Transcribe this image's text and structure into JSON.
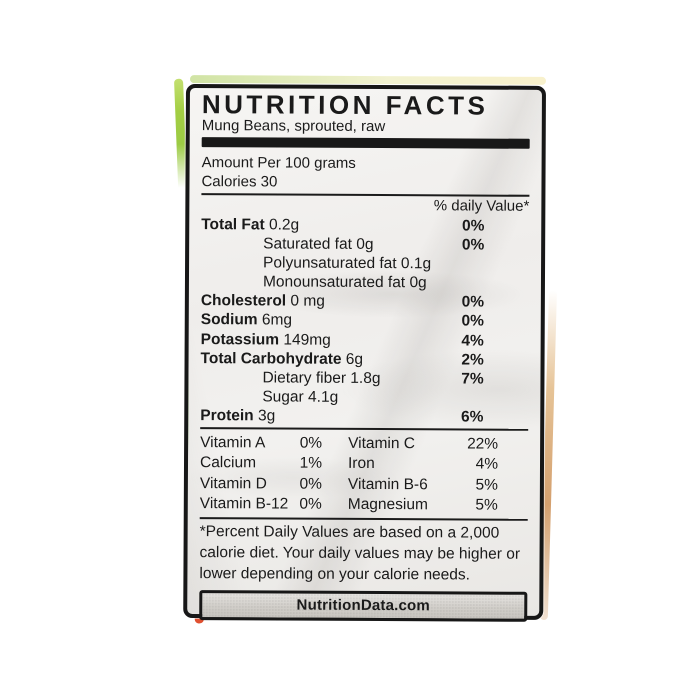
{
  "label": {
    "title": "NUTRITION FACTS",
    "subtitle": "Mung Beans, sprouted, raw",
    "amount_per": "Amount Per 100 grams",
    "calories_line": "Calories 30",
    "daily_value_header": "% daily Value*",
    "nutrients": [
      {
        "name": "Total Fat",
        "value": "0.2g",
        "pct": "0%",
        "bold": true
      },
      {
        "name": "Saturated fat",
        "value": "0g",
        "pct": "0%",
        "indent": true
      },
      {
        "name": "Polyunsaturated fat",
        "value": "0.1g",
        "pct": "",
        "indent": true
      },
      {
        "name": "Monounsaturated fat",
        "value": "0g",
        "pct": "",
        "indent": true
      },
      {
        "name": "Cholesterol",
        "value": "0 mg",
        "pct": "0%",
        "bold": true
      },
      {
        "name": "Sodium",
        "value": "6mg",
        "pct": "0%",
        "bold": true
      },
      {
        "name": "Potassium",
        "value": "149mg",
        "pct": "4%",
        "bold": true
      },
      {
        "name": "Total Carbohydrate",
        "value": "6g",
        "pct": "2%",
        "bold": true
      },
      {
        "name": "Dietary fiber",
        "value": "1.8g",
        "pct": "7%",
        "indent": true
      },
      {
        "name": "Sugar",
        "value": "4.1g",
        "pct": "",
        "indent": true
      },
      {
        "name": "Protein",
        "value": "3g",
        "pct": "6%",
        "bold": true
      }
    ],
    "vitamins": [
      {
        "left_name": "Vitamin A",
        "left_pct": "0%",
        "right_name": "Vitamin C",
        "right_pct": "22%"
      },
      {
        "left_name": "Calcium",
        "left_pct": "1%",
        "right_name": "Iron",
        "right_pct": "4%"
      },
      {
        "left_name": "Vitamin D",
        "left_pct": "0%",
        "right_name": "Vitamin B-6",
        "right_pct": "5%"
      },
      {
        "left_name": "Vitamin B-12",
        "left_pct": "0%",
        "right_name": "Magnesium",
        "right_pct": "5%"
      }
    ],
    "footnote": "*Percent Daily Values are based on a 2,000 calorie diet. Your daily values may be higher or lower depending on your calorie needs.",
    "brand": "NutritionData.com"
  },
  "colors": {
    "ink": "#1a1a1a",
    "paper": "#f1f0ee",
    "edge_green": "#9ccb44",
    "edge_red": "#d9472c",
    "edge_tan": "#cf9a55",
    "brand_box_bg": "#d4d1cc"
  }
}
